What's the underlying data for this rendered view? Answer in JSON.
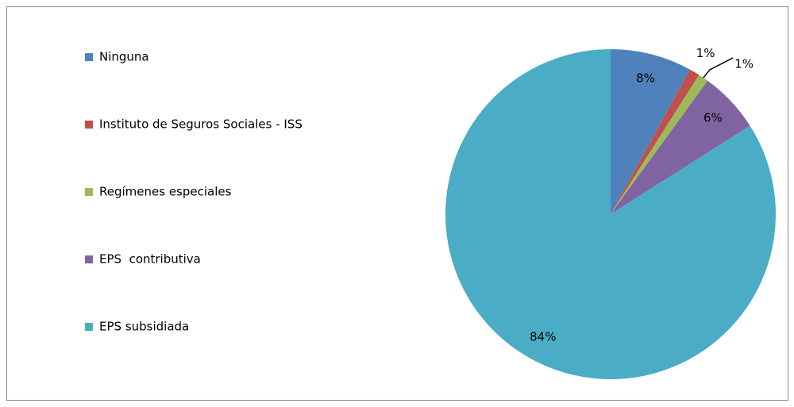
{
  "chart_data": {
    "type": "pie",
    "categories": [
      "Ninguna",
      "Instituto de Seguros Sociales - ISS",
      "Regímenes especiales",
      "EPS  contributiva",
      "EPS subsidiada"
    ],
    "values": [
      8,
      1,
      1,
      6,
      84
    ],
    "value_labels": [
      "8%",
      "1%",
      "1%",
      "6%",
      "84%"
    ],
    "colors": [
      "#4f81bd",
      "#c0504d",
      "#9bbb59",
      "#8064a2",
      "#4bacc6"
    ],
    "legend": "left"
  }
}
